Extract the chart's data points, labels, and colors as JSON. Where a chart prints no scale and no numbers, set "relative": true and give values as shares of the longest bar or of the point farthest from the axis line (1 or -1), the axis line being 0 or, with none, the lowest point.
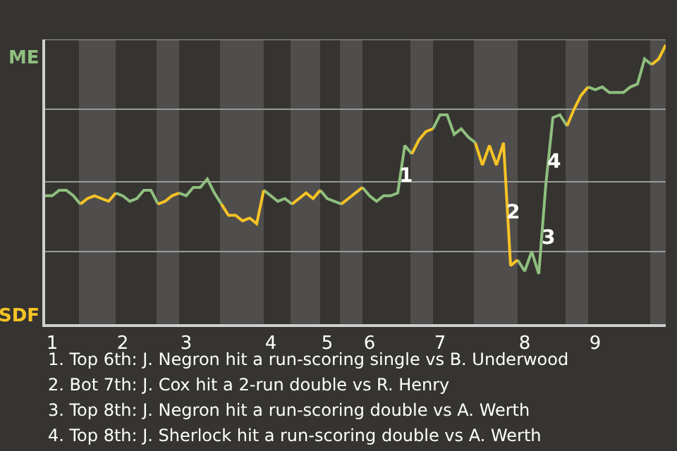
{
  "chart_data": {
    "type": "line",
    "relative": true,
    "categories": [
      null,
      "1",
      null,
      null,
      null,
      null,
      null,
      null,
      null,
      null,
      null,
      "2",
      null,
      null,
      null,
      null,
      null,
      null,
      null,
      null,
      "3",
      null,
      null,
      null,
      null,
      null,
      null,
      null,
      null,
      null,
      null,
      null,
      "4",
      null,
      null,
      null,
      null,
      null,
      null,
      null,
      "5",
      null,
      null,
      null,
      null,
      null,
      "6",
      null,
      null,
      null,
      null,
      null,
      null,
      null,
      null,
      null,
      "7",
      null,
      null,
      null,
      null,
      null,
      null,
      null,
      null,
      null,
      null,
      null,
      "8",
      null,
      null,
      null,
      null,
      null,
      null,
      null,
      null,
      null,
      "9",
      null,
      null,
      null,
      null,
      null,
      null,
      null,
      null,
      null,
      null
    ],
    "legend": false,
    "series": [
      {
        "name": "ME",
        "color": "#8fbf7f",
        "values": [
          0.46,
          0.46,
          0.48,
          0.48,
          0.46,
          0.43,
          null,
          null,
          null,
          null,
          0.47,
          0.46,
          0.44,
          0.45,
          0.48,
          0.48,
          0.43,
          null,
          null,
          0.47,
          0.46,
          0.49,
          0.49,
          0.52,
          0.47,
          0.43,
          null,
          null,
          null,
          null,
          null,
          0.48,
          0.46,
          0.44,
          0.45,
          0.43,
          null,
          null,
          null,
          0.48,
          0.45,
          0.44,
          0.43,
          null,
          null,
          0.49,
          0.46,
          0.44,
          0.46,
          0.46,
          0.47,
          0.64,
          0.61,
          null,
          null,
          0.7,
          0.75,
          0.75,
          0.68,
          0.7,
          0.67,
          0.65,
          null,
          null,
          null,
          null,
          null,
          0.23,
          0.19,
          0.26,
          0.18,
          0.5,
          0.74,
          0.75,
          0.71,
          null,
          null,
          0.85,
          0.84,
          0.85,
          0.83,
          0.83,
          0.83,
          0.85,
          0.86,
          0.95,
          0.93,
          null,
          null
        ]
      },
      {
        "name": "SDF",
        "color": "#f7c325",
        "values": [
          null,
          null,
          null,
          null,
          null,
          0.43,
          0.45,
          0.46,
          0.45,
          0.44,
          0.47,
          null,
          null,
          null,
          null,
          null,
          0.43,
          0.44,
          0.46,
          0.47,
          null,
          null,
          null,
          null,
          null,
          0.43,
          0.39,
          0.39,
          0.37,
          0.38,
          0.36,
          0.48,
          null,
          null,
          null,
          0.43,
          0.45,
          0.47,
          0.45,
          0.48,
          null,
          null,
          0.43,
          0.45,
          0.47,
          0.49,
          null,
          null,
          null,
          null,
          null,
          null,
          0.61,
          0.66,
          0.69,
          0.7,
          null,
          null,
          null,
          null,
          null,
          0.65,
          0.57,
          0.64,
          0.57,
          0.65,
          0.21,
          0.23,
          null,
          null,
          null,
          null,
          null,
          null,
          0.71,
          0.77,
          0.82,
          0.85,
          null,
          null,
          null,
          null,
          null,
          null,
          null,
          null,
          0.93,
          0.95,
          1
        ]
      }
    ],
    "ref_lines": [
      {
        "axis": "y",
        "value": 0.26,
        "color": "#9a9a9a"
      },
      {
        "axis": "y",
        "value": 0.51,
        "color": "#9a9a9a"
      },
      {
        "axis": "y",
        "value": 0.77,
        "color": "#9a9a9a"
      },
      {
        "axis": "y",
        "value": 1.02,
        "color": "#9a9a9a"
      }
    ],
    "annotations": [
      {
        "text": "1",
        "y": 0.53
      },
      {
        "text": "2",
        "y": 0.4
      },
      {
        "text": "3",
        "y": 0.31
      },
      {
        "text": "4",
        "y": 0.58
      },
      "1. Top 6th: J. Negron hit a run-scoring single vs B. Underwood",
      "2. Bot 7th: J. Cox hit a 2-run double vs R. Henry",
      "3. Top 8th: J. Negron hit a run-scoring double vs A. Werth",
      "4. Top 8th: J. Sherlock hit a run-scoring double vs A. Werth"
    ]
  }
}
